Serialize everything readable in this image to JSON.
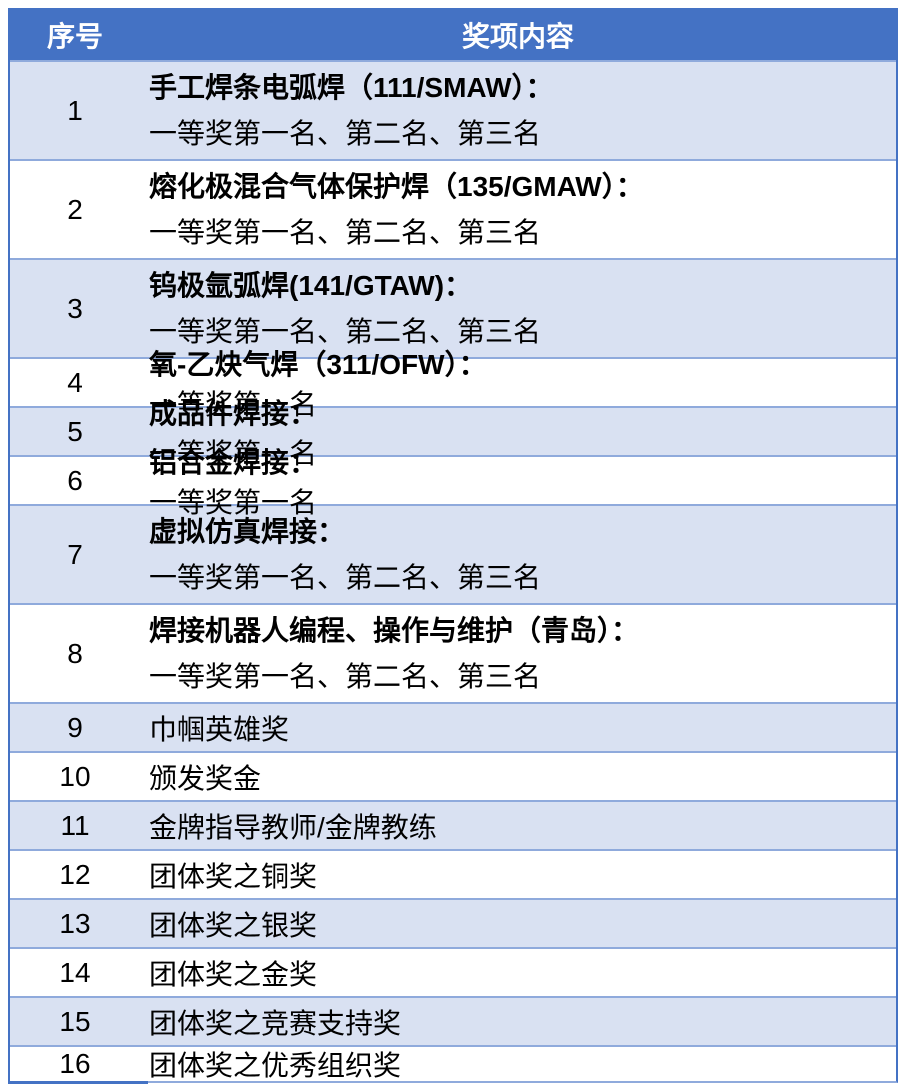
{
  "table": {
    "header": {
      "col_no": "序号",
      "col_content": "奖项内容"
    },
    "rows": [
      {
        "no": "1",
        "bold": "手工焊条电弧焊（111/SMAW）：",
        "plain": "一等奖第一名、第二名、第三名"
      },
      {
        "no": "2",
        "bold": "熔化极混合气体保护焊（135/GMAW）：",
        "plain": "一等奖第一名、第二名、第三名"
      },
      {
        "no": "3",
        "bold": "钨极氩弧焊(141/GTAW)：",
        "plain": "一等奖第一名、第二名、第三名"
      },
      {
        "no": "4",
        "bold": "氧-乙炔气焊（311/OFW）：",
        "plain": "一等奖第一名"
      },
      {
        "no": "5",
        "bold": "成品件焊接：",
        "plain": "一等奖第一名"
      },
      {
        "no": "6",
        "bold": "铝合金焊接：",
        "plain": "一等奖第一名"
      },
      {
        "no": "7",
        "bold": "虚拟仿真焊接：",
        "plain": "一等奖第一名、第二名、第三名"
      },
      {
        "no": "8",
        "bold": "焊接机器人编程、操作与维护（青岛）：",
        "plain": "一等奖第一名、第二名、第三名"
      },
      {
        "no": "9",
        "bold": "",
        "plain": "巾帼英雄奖"
      },
      {
        "no": "10",
        "bold": "",
        "plain": "颁发奖金"
      },
      {
        "no": "11",
        "bold": "",
        "plain": "金牌指导教师/金牌教练"
      },
      {
        "no": "12",
        "bold": "",
        "plain": "团体奖之铜奖"
      },
      {
        "no": "13",
        "bold": "",
        "plain": "团体奖之银奖"
      },
      {
        "no": "14",
        "bold": "",
        "plain": "团体奖之金奖"
      },
      {
        "no": "15",
        "bold": "",
        "plain": "团体奖之竞赛支持奖"
      },
      {
        "no": "16",
        "bold": "",
        "plain": "团体奖之优秀组织奖"
      }
    ],
    "colors": {
      "header_bg": "#4472C4",
      "header_text": "#FFFFFF",
      "row_shade_bg": "#D9E1F2",
      "row_white_bg": "#FFFFFF",
      "grid_line": "#8FAADC",
      "outer_border": "#4472C4",
      "body_text": "#000000"
    }
  }
}
